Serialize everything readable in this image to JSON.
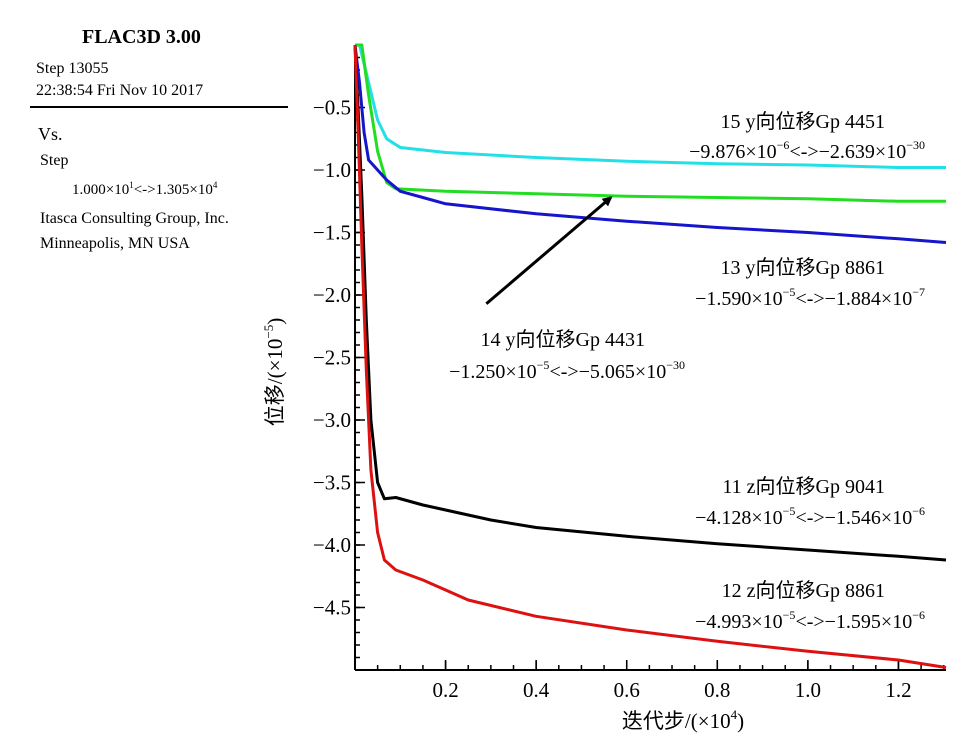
{
  "info": {
    "software": "FLAC3D 3.00",
    "step": "Step 13055",
    "datetime": "22:38:54 Fri Nov 10 2017",
    "vs": "Vs.",
    "vs_var": "Step",
    "range_a": "1.000×10",
    "range_a_exp": "1",
    "range_sep": "<->",
    "range_b": "1.305×10",
    "range_b_exp": "4",
    "company": "Itasca Consulting Group, Inc.",
    "location": "Minneapolis, MN  USA"
  },
  "chart_data": {
    "type": "line",
    "title": "",
    "xlabel": "迭代步/(×10",
    "xlabel_exp": "4",
    "xlabel_end": ")",
    "ylabel": "位移/(×10",
    "ylabel_exp": "−5",
    "ylabel_end": ")",
    "xlim": [
      0.0,
      1.305
    ],
    "ylim": [
      -5.0,
      0.0
    ],
    "xticks": [
      0.2,
      0.4,
      0.6,
      0.8,
      1.0,
      1.2
    ],
    "xtick_labels": [
      "0.2",
      "0.4",
      "0.6",
      "0.8",
      "1.0",
      "1.2"
    ],
    "yticks": [
      -0.5,
      -1.0,
      -1.5,
      -2.0,
      -2.5,
      -3.0,
      -3.5,
      -4.0,
      -4.5
    ],
    "ytick_labels": [
      "−0.5",
      "−1.0",
      "−1.5",
      "−2.0",
      "−2.5",
      "−3.0",
      "−3.5",
      "−4.0",
      "−4.5"
    ],
    "series": [
      {
        "name": "15 y向位移Gp 4451",
        "id": "15",
        "dir": "y",
        "gp": "Gp 4451",
        "range_min": "−9.876×10",
        "range_min_exp": "−6",
        "range_max": "−2.639×10",
        "range_max_exp": "−30",
        "color": "#22e0e6",
        "points": [
          [
            0.0,
            0.0
          ],
          [
            0.01,
            0.0
          ],
          [
            0.03,
            -0.3
          ],
          [
            0.05,
            -0.6
          ],
          [
            0.07,
            -0.75
          ],
          [
            0.1,
            -0.82
          ],
          [
            0.2,
            -0.86
          ],
          [
            0.4,
            -0.9
          ],
          [
            0.6,
            -0.93
          ],
          [
            0.8,
            -0.95
          ],
          [
            1.0,
            -0.96
          ],
          [
            1.2,
            -0.98
          ],
          [
            1.305,
            -0.98
          ]
        ]
      },
      {
        "name": "14 y向位移Gp 4431",
        "id": "14",
        "dir": "y",
        "gp": "Gp 4431",
        "range_min": "−1.250×10",
        "range_min_exp": "−5",
        "range_max": "−5.065×10",
        "range_max_exp": "−30",
        "color": "#22dd22",
        "points": [
          [
            0.0,
            0.0
          ],
          [
            0.015,
            0.0
          ],
          [
            0.03,
            -0.4
          ],
          [
            0.05,
            -0.85
          ],
          [
            0.07,
            -1.1
          ],
          [
            0.09,
            -1.15
          ],
          [
            0.2,
            -1.17
          ],
          [
            0.4,
            -1.19
          ],
          [
            0.6,
            -1.21
          ],
          [
            0.8,
            -1.22
          ],
          [
            1.0,
            -1.23
          ],
          [
            1.2,
            -1.25
          ],
          [
            1.305,
            -1.25
          ]
        ]
      },
      {
        "name": "13 y向位移Gp 8861",
        "id": "13",
        "dir": "y",
        "gp": "Gp 8861",
        "range_min": "−1.590×10",
        "range_min_exp": "−5",
        "range_max": "−1.884×10",
        "range_max_exp": "−7",
        "color": "#1515cc",
        "points": [
          [
            0.0,
            0.0
          ],
          [
            0.01,
            -0.3
          ],
          [
            0.02,
            -0.7
          ],
          [
            0.03,
            -0.92
          ],
          [
            0.05,
            -1.0
          ],
          [
            0.07,
            -1.08
          ],
          [
            0.1,
            -1.17
          ],
          [
            0.15,
            -1.22
          ],
          [
            0.2,
            -1.27
          ],
          [
            0.4,
            -1.35
          ],
          [
            0.6,
            -1.41
          ],
          [
            0.8,
            -1.46
          ],
          [
            1.0,
            -1.5
          ],
          [
            1.2,
            -1.55
          ],
          [
            1.305,
            -1.58
          ]
        ]
      },
      {
        "name": "11 z向位移Gp 9041",
        "id": "11",
        "dir": "z",
        "gp": "Gp 9041",
        "range_min": "−4.128×10",
        "range_min_exp": "−5",
        "range_max": "−1.546×10",
        "range_max_exp": "−6",
        "color": "#000000",
        "points": [
          [
            0.0,
            0.0
          ],
          [
            0.008,
            -0.6
          ],
          [
            0.015,
            -1.2
          ],
          [
            0.025,
            -2.2
          ],
          [
            0.035,
            -3.0
          ],
          [
            0.05,
            -3.5
          ],
          [
            0.065,
            -3.63
          ],
          [
            0.09,
            -3.62
          ],
          [
            0.15,
            -3.68
          ],
          [
            0.2,
            -3.72
          ],
          [
            0.3,
            -3.8
          ],
          [
            0.4,
            -3.86
          ],
          [
            0.6,
            -3.93
          ],
          [
            0.8,
            -3.99
          ],
          [
            1.0,
            -4.04
          ],
          [
            1.2,
            -4.09
          ],
          [
            1.305,
            -4.12
          ]
        ]
      },
      {
        "name": "12 z向位移Gp 8861",
        "id": "12",
        "dir": "z",
        "gp": "Gp 8861",
        "range_min": "−4.993×10",
        "range_min_exp": "−5",
        "range_max": "−1.595×10",
        "range_max_exp": "−6",
        "color": "#dd1111",
        "points": [
          [
            0.0,
            0.0
          ],
          [
            0.008,
            -0.8
          ],
          [
            0.015,
            -1.6
          ],
          [
            0.025,
            -2.6
          ],
          [
            0.035,
            -3.4
          ],
          [
            0.05,
            -3.9
          ],
          [
            0.065,
            -4.12
          ],
          [
            0.09,
            -4.2
          ],
          [
            0.15,
            -4.28
          ],
          [
            0.2,
            -4.36
          ],
          [
            0.25,
            -4.44
          ],
          [
            0.4,
            -4.57
          ],
          [
            0.6,
            -4.68
          ],
          [
            0.8,
            -4.77
          ],
          [
            1.0,
            -4.85
          ],
          [
            1.2,
            -4.92
          ],
          [
            1.305,
            -4.98
          ]
        ]
      }
    ],
    "annotation_arrow": {
      "target_series": "14",
      "from": [
        0.29,
        -2.07
      ],
      "to": [
        0.565,
        -1.22
      ]
    }
  }
}
